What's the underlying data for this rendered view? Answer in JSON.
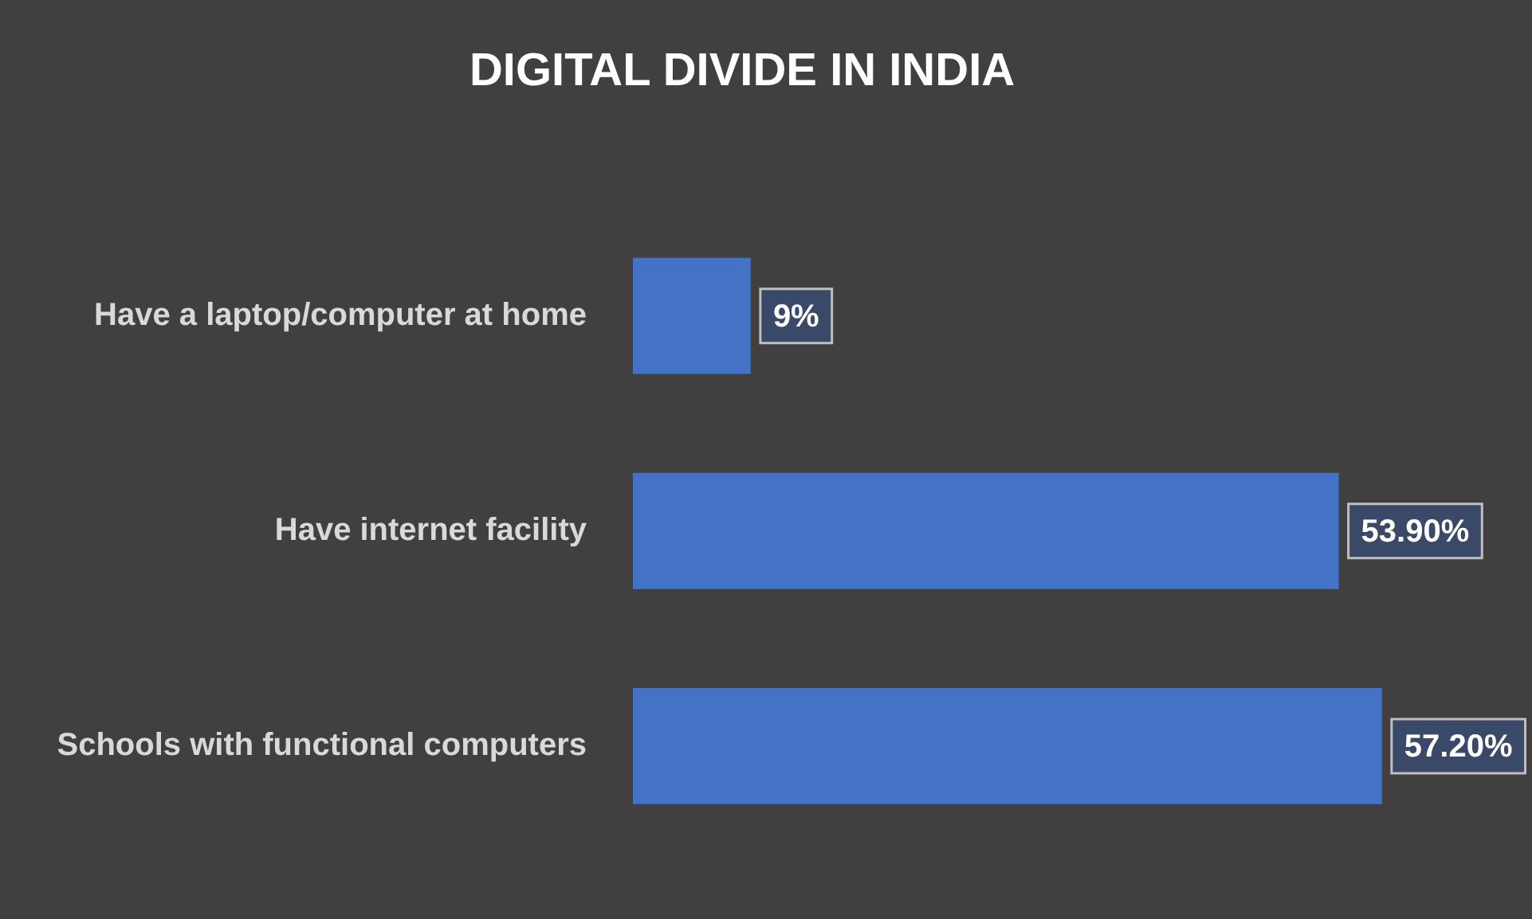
{
  "chart_data": {
    "type": "bar",
    "orientation": "horizontal",
    "title": "DIGITAL DIVIDE IN INDIA",
    "categories": [
      "Have a laptop/computer at home",
      "Have internet facility",
      "Schools with functional computers"
    ],
    "values": [
      9,
      53.9,
      57.2
    ],
    "color": "#4472c4",
    "value_labels": [
      "9%",
      "53.90%",
      "57.20%"
    ],
    "xlim": [
      0,
      65
    ],
    "tick_labels": "y"
  }
}
